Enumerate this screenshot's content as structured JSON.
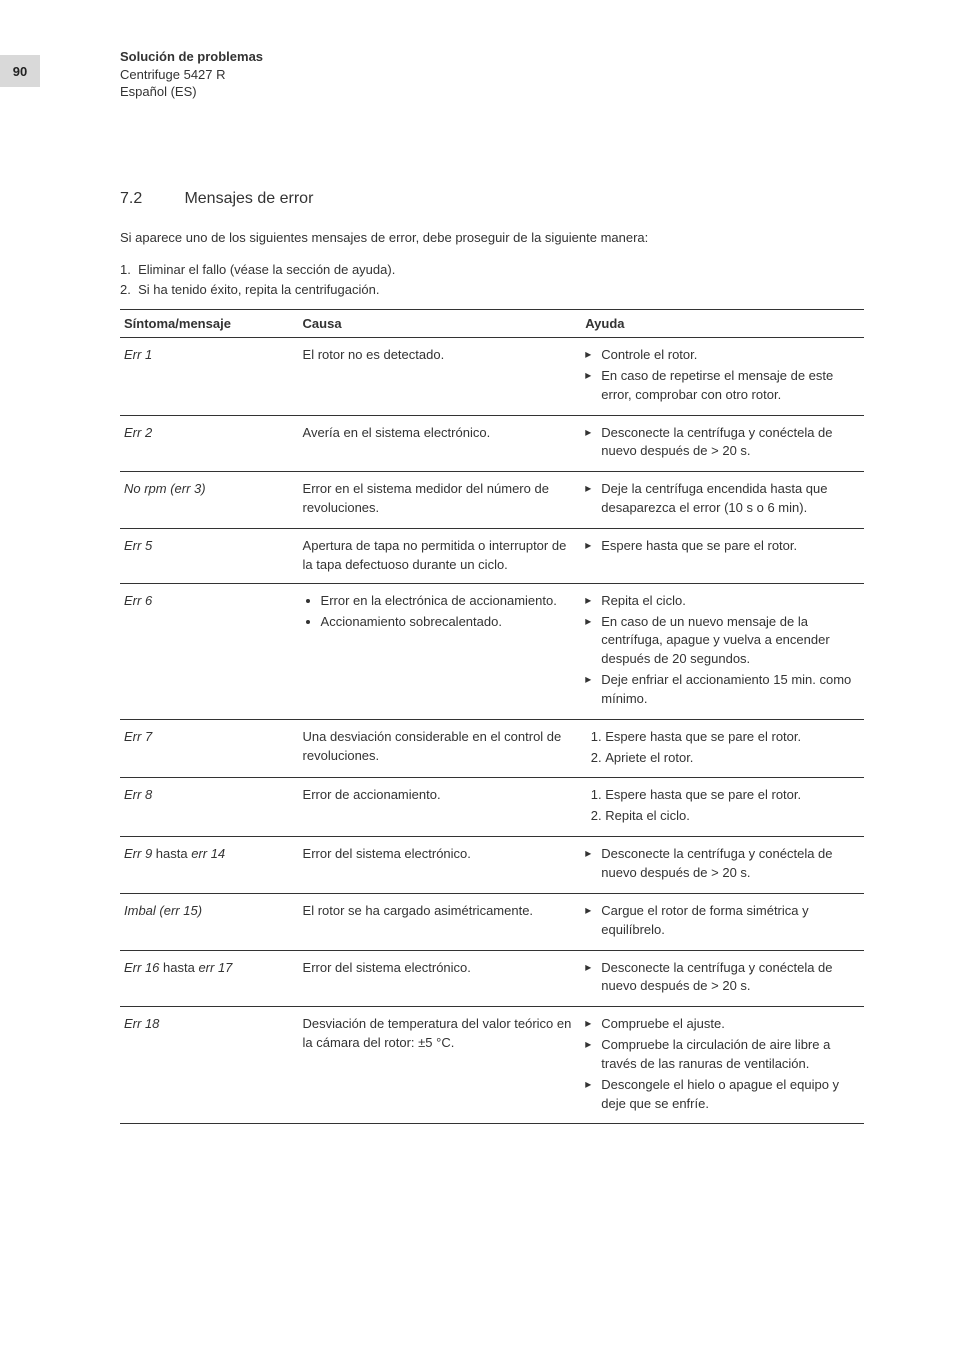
{
  "page_number": "90",
  "header": {
    "title": "Solución de problemas",
    "subtitle": "Centrifuge 5427 R",
    "lang": "Español (ES)"
  },
  "section": {
    "number": "7.2",
    "title": "Mensajes de error"
  },
  "intro": "Si aparece uno de los siguientes mensajes de error, debe proseguir de la siguiente manera:",
  "presteps": {
    "s1": "Eliminar el fallo (véase la sección de ayuda).",
    "s2": "Si ha tenido éxito, repita la centrifugación."
  },
  "table": {
    "head": {
      "sym": "Síntoma/mensaje",
      "cause": "Causa",
      "help": "Ayuda"
    },
    "rows": {
      "r1": {
        "sym": "Err 1",
        "cause": "El rotor no es detectado.",
        "help": {
          "a": "Controle el rotor.",
          "b": "En caso de repetirse el mensaje de este error, comprobar con otro rotor."
        }
      },
      "r2": {
        "sym": "Err 2",
        "cause": "Avería en el sistema electrónico.",
        "help": {
          "a": "Desconecte la centrífuga y conéctela de nuevo después de > 20 s."
        }
      },
      "r3": {
        "sym": "No rpm (err 3)",
        "cause": "Error en el sistema medidor del número de revoluciones.",
        "help": {
          "a": "Deje la centrífuga encendida hasta que desaparezca el error (10 s o 6 min)."
        }
      },
      "r5": {
        "sym": "Err 5",
        "cause": "Apertura de tapa no permitida o interruptor de la tapa defectuoso durante un ciclo.",
        "help": {
          "a": "Espere hasta que se pare el rotor."
        }
      },
      "r6": {
        "sym": "Err 6",
        "cause": {
          "a": "Error en la electrónica de accionamiento.",
          "b": "Accionamiento sobrecalentado."
        },
        "help": {
          "a": "Repita el ciclo.",
          "b": "En caso de un nuevo mensaje de la centrífuga, apague y vuelva a encender después de 20 segundos.",
          "c": "Deje enfriar el accionamiento 15 min. como mínimo."
        }
      },
      "r7": {
        "sym": "Err 7",
        "cause": "Una desviación considerable en el control de revoluciones.",
        "help": {
          "a": "Espere hasta que se pare el rotor.",
          "b": "Apriete el rotor."
        }
      },
      "r8": {
        "sym": "Err 8",
        "cause": "Error de accionamiento.",
        "help": {
          "a": "Espere hasta que se pare el rotor.",
          "b": "Repita el ciclo."
        }
      },
      "r9": {
        "sym_a": "Err 9",
        "sym_mid": " hasta ",
        "sym_b": "err 14",
        "cause": "Error del sistema electrónico.",
        "help": {
          "a": "Desconecte la centrífuga y conéctela de nuevo después de > 20 s."
        }
      },
      "r15": {
        "sym": "Imbal (err 15)",
        "cause": "El rotor se ha cargado asimétricamente.",
        "help": {
          "a": "Cargue el rotor de forma simétrica y equilíbrelo."
        }
      },
      "r16": {
        "sym_a": "Err 16",
        "sym_mid": " hasta ",
        "sym_b": "err 17",
        "cause": "Error del sistema electrónico.",
        "help": {
          "a": "Desconecte la centrífuga y conéctela de nuevo después de > 20 s."
        }
      },
      "r18": {
        "sym": "Err 18",
        "cause": "Desviación de temperatura del valor teórico en la cámara del rotor: ±5 °C.",
        "help": {
          "a": "Compruebe el ajuste.",
          "b": "Compruebe la circulación de aire libre a través de las ranuras de ventilación.",
          "c": "Descongele el hielo o apague el equipo y deje que se enfríe."
        }
      }
    }
  }
}
